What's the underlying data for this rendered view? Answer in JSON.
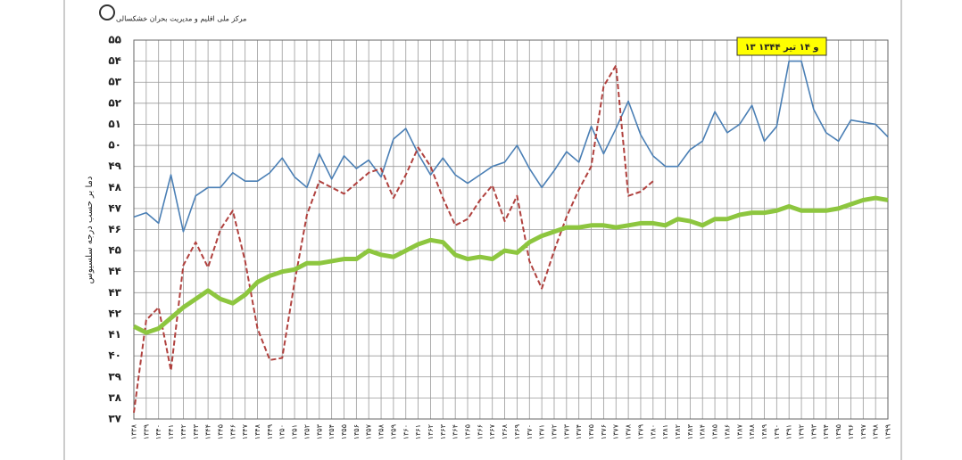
{
  "chart_data": {
    "type": "line",
    "source": "مرکز ملی اقلیم و مدیریت بحران خشکسالی",
    "ylabel": "دما بر حسب درجه سلسیوس",
    "annotation": "۱۳ و ۱۴ تیر ۱۳۴۴",
    "categories": [
      "۱۳۳۸",
      "۱۳۳۹",
      "۱۳۴۰",
      "۱۳۴۱",
      "۱۳۴۲",
      "۱۳۴۳",
      "۱۳۴۴",
      "۱۳۴۵",
      "۱۳۴۶",
      "۱۳۴۷",
      "۱۳۴۸",
      "۱۳۴۹",
      "۱۳۵۰",
      "۱۳۵۱",
      "۱۳۵۲",
      "۱۳۵۳",
      "۱۳۵۴",
      "۱۳۵۵",
      "۱۳۵۶",
      "۱۳۵۷",
      "۱۳۵۸",
      "۱۳۵۹",
      "۱۳۶۰",
      "۱۳۶۱",
      "۱۳۶۲",
      "۱۳۶۳",
      "۱۳۶۴",
      "۱۳۶۵",
      "۱۳۶۶",
      "۱۳۶۷",
      "۱۳۶۸",
      "۱۳۶۹",
      "۱۳۷۰",
      "۱۳۷۱",
      "۱۳۷۲",
      "۱۳۷۳",
      "۱۳۷۴",
      "۱۳۷۵",
      "۱۳۷۶",
      "۱۳۷۷",
      "۱۳۷۸",
      "۱۳۷۹",
      "۱۳۸۰",
      "۱۳۸۱",
      "۱۳۸۲",
      "۱۳۸۳",
      "۱۳۸۴",
      "۱۳۸۵",
      "۱۳۸۶",
      "۱۳۸۷",
      "۱۳۸۸",
      "۱۳۸۹",
      "۱۳۹۰",
      "۱۳۹۱",
      "۱۳۹۲",
      "۱۳۹۳",
      "۱۳۹۴",
      "۱۳۹۵",
      "۱۳۹۶",
      "۱۳۹۷",
      "۱۳۹۸",
      "۱۳۹۹"
    ],
    "series": [
      {
        "color": "#4a7fb5",
        "style": "solid",
        "width": 1.6,
        "values": [
          46.6,
          46.8,
          46.3,
          48.6,
          45.9,
          47.6,
          48.0,
          48.0,
          48.7,
          48.3,
          48.3,
          48.7,
          49.4,
          48.5,
          48.0,
          49.6,
          48.4,
          49.5,
          48.9,
          49.3,
          48.5,
          50.3,
          50.8,
          49.6,
          48.6,
          49.4,
          48.6,
          48.2,
          48.6,
          49.0,
          49.2,
          50.0,
          48.9,
          48.0,
          48.8,
          49.7,
          49.2,
          50.9,
          49.6,
          50.8,
          52.1,
          50.5,
          49.5,
          49.0,
          49.0,
          49.8,
          50.2,
          51.6,
          50.6,
          51.0,
          51.9,
          50.2,
          50.9,
          54.0,
          54.0,
          51.7,
          50.6,
          50.2,
          51.2,
          51.1,
          51.0,
          50.4
        ]
      },
      {
        "color": "#b0413e",
        "style": "dashed",
        "width": 2,
        "values": [
          37.3,
          41.7,
          42.3,
          39.3,
          44.3,
          45.4,
          44.2,
          46.0,
          46.9,
          44.5,
          41.3,
          39.8,
          39.9,
          43.5,
          46.7,
          48.3,
          48.0,
          47.7,
          48.2,
          48.7,
          48.9,
          47.5,
          48.6,
          49.9,
          49.0,
          47.5,
          46.2,
          46.5,
          47.4,
          48.1,
          46.4,
          47.6,
          44.5,
          43.2,
          45.0,
          46.6,
          47.9,
          49.0,
          52.8,
          53.8,
          47.6,
          47.8,
          48.3,
          null,
          null,
          null,
          null,
          null,
          null,
          null,
          null,
          null,
          null,
          null,
          null,
          null,
          null,
          null,
          null,
          null,
          null,
          null
        ]
      },
      {
        "color": "#8dc63f",
        "style": "solid",
        "width": 5,
        "values": [
          41.4,
          41.1,
          41.3,
          41.8,
          42.3,
          42.7,
          43.1,
          42.7,
          42.5,
          42.9,
          43.5,
          43.8,
          44.0,
          44.1,
          44.4,
          44.4,
          44.5,
          44.6,
          44.6,
          45.0,
          44.8,
          44.7,
          45.0,
          45.3,
          45.5,
          45.4,
          44.8,
          44.6,
          44.7,
          44.6,
          45.0,
          44.9,
          45.4,
          45.7,
          45.9,
          46.1,
          46.1,
          46.2,
          46.2,
          46.1,
          46.2,
          46.3,
          46.3,
          46.2,
          46.5,
          46.4,
          46.2,
          46.5,
          46.5,
          46.7,
          46.8,
          46.8,
          46.9,
          47.1,
          46.9,
          46.9,
          46.9,
          47.0,
          47.2,
          47.4,
          47.5,
          47.4
        ]
      }
    ],
    "ylim": [
      37,
      55
    ],
    "yticks": [
      {
        "value": 37,
        "label": "۳۷"
      },
      {
        "value": 38,
        "label": "۳۸"
      },
      {
        "value": 39,
        "label": "۳۹"
      },
      {
        "value": 40,
        "label": "۴۰"
      },
      {
        "value": 41,
        "label": "۴۱"
      },
      {
        "value": 42,
        "label": "۴۲"
      },
      {
        "value": 43,
        "label": "۴۳"
      },
      {
        "value": 44,
        "label": "۴۴"
      },
      {
        "value": 45,
        "label": "۴۵"
      },
      {
        "value": 46,
        "label": "۴۶"
      },
      {
        "value": 47,
        "label": "۴۷"
      },
      {
        "value": 48,
        "label": "۴۸"
      },
      {
        "value": 49,
        "label": "۴۹"
      },
      {
        "value": 50,
        "label": "۵۰"
      },
      {
        "value": 51,
        "label": "۵۱"
      },
      {
        "value": 52,
        "label": "۵۲"
      },
      {
        "value": 53,
        "label": "۵۳"
      },
      {
        "value": 54,
        "label": "۵۴"
      },
      {
        "value": 55,
        "label": "۵۵"
      }
    ],
    "grid": true
  }
}
